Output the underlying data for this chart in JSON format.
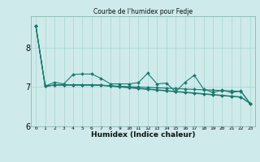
{
  "title": "Courbe de l'humidex pour Fedje",
  "xlabel": "Humidex (Indice chaleur)",
  "bg_color": "#ceeaea",
  "line_color": "#1a7a6e",
  "grid_color": "#aad4d4",
  "ylim": [
    6.0,
    8.8
  ],
  "xlim": [
    -0.5,
    23.5
  ],
  "yticks": [
    6,
    7,
    8
  ],
  "xtick_labels": [
    "0",
    "1",
    "2",
    "3",
    "4",
    "5",
    "6",
    "7",
    "8",
    "9",
    "10",
    "11",
    "12",
    "13",
    "14",
    "15",
    "16",
    "17",
    "18",
    "19",
    "20",
    "21",
    "22",
    "23"
  ],
  "series": [
    [
      8.55,
      7.02,
      7.12,
      7.08,
      7.32,
      7.33,
      7.33,
      7.22,
      7.08,
      7.08,
      7.08,
      7.11,
      7.35,
      7.08,
      7.1,
      6.88,
      7.12,
      7.3,
      6.95,
      6.86,
      6.92,
      6.86,
      6.9,
      6.58
    ],
    [
      8.55,
      7.02,
      7.05,
      7.05,
      7.05,
      7.05,
      7.05,
      7.05,
      7.02,
      7.0,
      6.98,
      6.96,
      6.94,
      6.92,
      6.9,
      6.88,
      6.86,
      6.84,
      6.82,
      6.8,
      6.78,
      6.76,
      6.74,
      6.58
    ],
    [
      8.55,
      7.02,
      7.05,
      7.05,
      7.05,
      7.05,
      7.05,
      7.05,
      7.03,
      7.01,
      6.99,
      6.97,
      6.95,
      6.93,
      6.91,
      6.89,
      6.87,
      6.85,
      6.83,
      6.81,
      6.79,
      6.77,
      6.75,
      6.58
    ],
    [
      8.55,
      7.02,
      7.05,
      7.06,
      7.06,
      7.06,
      7.05,
      7.04,
      7.03,
      7.02,
      7.01,
      7.0,
      6.99,
      6.98,
      6.97,
      6.96,
      6.95,
      6.94,
      6.93,
      6.92,
      6.91,
      6.9,
      6.89,
      6.58
    ]
  ]
}
